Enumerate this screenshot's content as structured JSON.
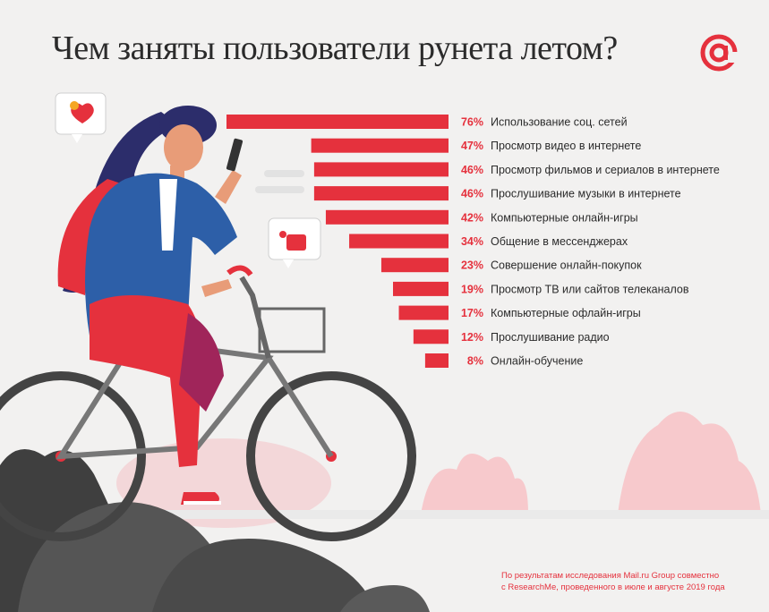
{
  "page": {
    "title": "Чем заняты пользователи рунета летом?",
    "footnote_line1": "По результатам исследования Mail.ru Group совместно",
    "footnote_line2": "с ResearchMe, проведенного в июле и августе 2019 года"
  },
  "colors": {
    "accent": "#e5313d",
    "text": "#2b2b2b",
    "background": "#f2f1f0",
    "illustration_dark": "#4a4a4a",
    "illustration_pink": "#f5c6c9"
  },
  "chart_data": {
    "type": "bar",
    "orientation": "horizontal",
    "unit": "%",
    "categories": [
      "Использование соц. сетей",
      "Просмотр видео в интернете",
      "Просмотр фильмов и сериалов в интернете",
      "Прослушивание музыки в интернете",
      "Компьютерные онлайн-игры",
      "Общение в мессенджерах",
      "Совершение онлайн-покупок",
      "Просмотр ТВ или сайтов телеканалов",
      "Компьютерные офлайн-игры",
      "Прослушивание радио",
      "Онлайн-обучение"
    ],
    "values": [
      76,
      47,
      46,
      46,
      42,
      34,
      23,
      19,
      17,
      12,
      8
    ],
    "value_labels": [
      "76%",
      "47%",
      "46%",
      "46%",
      "42%",
      "34%",
      "23%",
      "19%",
      "17%",
      "12%",
      "8%"
    ],
    "xlim": [
      0,
      76
    ],
    "grid": false,
    "legend": "none",
    "bar_color": "#e5313d"
  },
  "icons": [
    "at-logo-icon",
    "heart-bubble-icon",
    "like-bubble-icon",
    "cyclist-illustration",
    "bicycle-icon",
    "bush-icon"
  ]
}
